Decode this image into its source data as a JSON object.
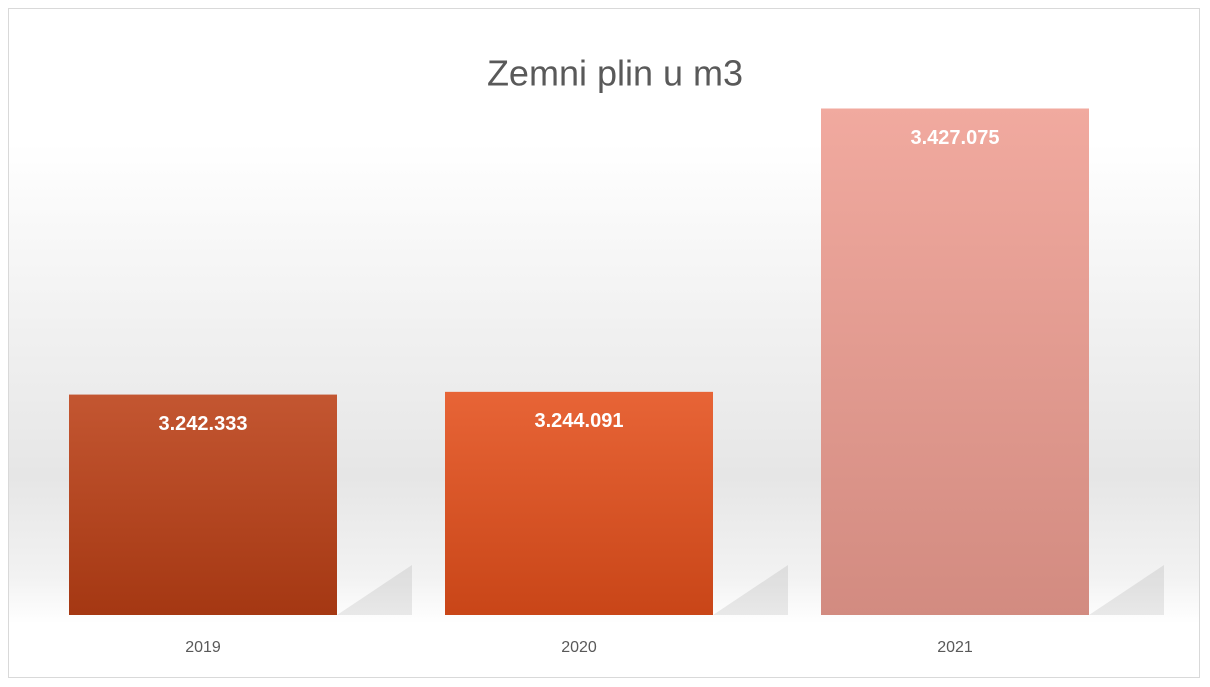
{
  "chart_data": {
    "type": "bar",
    "title": "Zemni plin u m3",
    "categories": [
      "2019",
      "2020",
      "2021"
    ],
    "values": [
      3242333,
      3244091,
      3427075
    ],
    "value_labels": [
      "3.242.333",
      "3.244.091",
      "3.427.075"
    ],
    "colors": [
      "#bb3f15",
      "#e44f1b",
      "#ef9e92"
    ],
    "ylim": [
      3100000,
      3450000
    ]
  }
}
